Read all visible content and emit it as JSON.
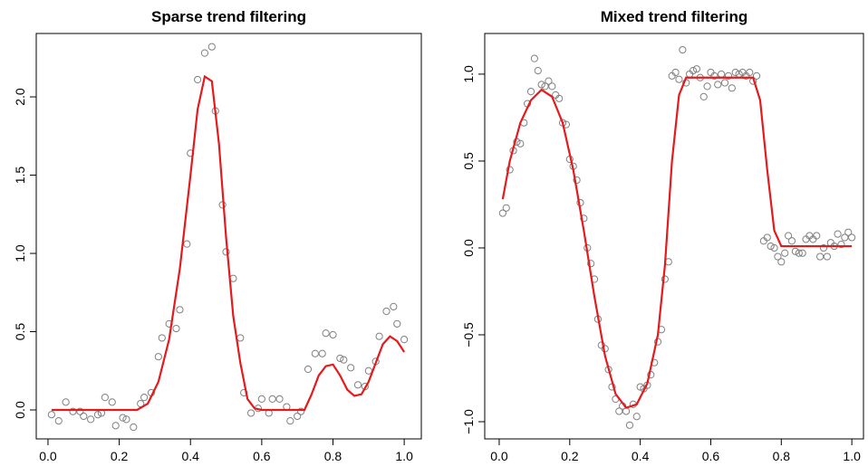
{
  "chart_data": [
    {
      "type": "scatter",
      "title": "Sparse trend filtering",
      "xlim": [
        -0.033,
        1.048
      ],
      "ylim": [
        -0.185,
        2.405
      ],
      "xticks": [
        {
          "value": 0,
          "label": "0.0"
        },
        0.2,
        0.4,
        0.6,
        0.8,
        {
          "value": 1,
          "label": "1.0"
        }
      ],
      "yticks": [
        {
          "value": 0,
          "label": "0.0"
        },
        0.5,
        {
          "value": 1,
          "label": "1.0"
        },
        1.5,
        {
          "value": 2,
          "label": "2.0"
        }
      ],
      "series": [
        {
          "type": "scatter",
          "color": "#808080",
          "x": [
            0.01,
            0.03,
            0.05,
            0.07,
            0.09,
            0.1,
            0.12,
            0.14,
            0.15,
            0.16,
            0.18,
            0.19,
            0.21,
            0.22,
            0.24,
            0.26,
            0.27,
            0.29,
            0.31,
            0.32,
            0.34,
            0.36,
            0.37,
            0.39,
            0.4,
            0.42,
            0.44,
            0.46,
            0.47,
            0.49,
            0.5,
            0.52,
            0.54,
            0.55,
            0.57,
            0.59,
            0.6,
            0.62,
            0.63,
            0.65,
            0.67,
            0.68,
            0.7,
            0.71,
            0.73,
            0.75,
            0.77,
            0.78,
            0.8,
            0.82,
            0.83,
            0.85,
            0.87,
            0.89,
            0.9,
            0.92,
            0.93,
            0.95,
            0.97,
            0.98,
            1.0
          ],
          "values": [
            -0.03,
            -0.07,
            0.05,
            -0.01,
            -0.01,
            -0.04,
            -0.06,
            -0.03,
            -0.02,
            0.08,
            0.05,
            -0.1,
            -0.05,
            -0.06,
            -0.11,
            0.04,
            0.08,
            0.11,
            0.34,
            0.46,
            0.55,
            0.52,
            0.64,
            1.06,
            1.64,
            2.11,
            2.28,
            2.32,
            1.91,
            1.31,
            1.01,
            0.84,
            0.46,
            0.11,
            -0.02,
            0.01,
            0.07,
            -0.02,
            0.07,
            0.07,
            0.02,
            -0.07,
            -0.04,
            -0.01,
            0.26,
            0.36,
            0.36,
            0.49,
            0.48,
            0.33,
            0.32,
            0.27,
            0.16,
            0.15,
            0.25,
            0.31,
            0.47,
            0.63,
            0.66,
            0.55,
            0.45
          ]
        },
        {
          "type": "line",
          "color": "#e41a1c",
          "x": [
            0.01,
            0.25,
            0.28,
            0.31,
            0.34,
            0.37,
            0.4,
            0.42,
            0.44,
            0.46,
            0.48,
            0.5,
            0.52,
            0.54,
            0.56,
            0.58,
            0.6,
            0.72,
            0.74,
            0.76,
            0.78,
            0.8,
            0.82,
            0.84,
            0.86,
            0.88,
            0.9,
            0.92,
            0.94,
            0.96,
            0.98,
            1.0
          ],
          "values": [
            0,
            0,
            0.04,
            0.18,
            0.45,
            0.9,
            1.5,
            1.92,
            2.13,
            2.1,
            1.7,
            1.1,
            0.6,
            0.3,
            0.07,
            0.01,
            0,
            0,
            0.1,
            0.22,
            0.28,
            0.29,
            0.22,
            0.13,
            0.09,
            0.1,
            0.18,
            0.3,
            0.42,
            0.47,
            0.44,
            0.37
          ]
        }
      ]
    },
    {
      "type": "scatter",
      "title": "Mixed trend filtering",
      "xlim": [
        -0.041,
        1.033
      ],
      "ylim": [
        -1.099,
        1.234
      ],
      "xticks": [
        {
          "value": 0,
          "label": "0.0"
        },
        0.2,
        0.4,
        0.6,
        0.8,
        {
          "value": 1,
          "label": "1.0"
        }
      ],
      "yticks": [
        {
          "value": -1,
          "label": "−1.0"
        },
        {
          "value": -0.5,
          "label": "−0.5"
        },
        {
          "value": 0,
          "label": "0.0"
        },
        0.5,
        {
          "value": 1,
          "label": "1.0"
        }
      ],
      "series": [
        {
          "type": "scatter",
          "color": "#808080",
          "x": [
            0.01,
            0.02,
            0.03,
            0.04,
            0.05,
            0.06,
            0.07,
            0.08,
            0.09,
            0.1,
            0.11,
            0.12,
            0.13,
            0.14,
            0.15,
            0.16,
            0.17,
            0.18,
            0.19,
            0.2,
            0.21,
            0.22,
            0.23,
            0.24,
            0.25,
            0.26,
            0.27,
            0.28,
            0.29,
            0.3,
            0.31,
            0.32,
            0.33,
            0.34,
            0.35,
            0.36,
            0.37,
            0.38,
            0.39,
            0.4,
            0.41,
            0.42,
            0.43,
            0.44,
            0.45,
            0.46,
            0.47,
            0.48,
            0.49,
            0.5,
            0.51,
            0.52,
            0.53,
            0.54,
            0.55,
            0.56,
            0.57,
            0.58,
            0.59,
            0.6,
            0.61,
            0.62,
            0.63,
            0.64,
            0.65,
            0.66,
            0.67,
            0.68,
            0.69,
            0.7,
            0.71,
            0.72,
            0.73,
            0.75,
            0.76,
            0.77,
            0.78,
            0.79,
            0.8,
            0.81,
            0.82,
            0.83,
            0.84,
            0.85,
            0.86,
            0.87,
            0.88,
            0.89,
            0.9,
            0.91,
            0.92,
            0.93,
            0.94,
            0.95,
            0.96,
            0.97,
            0.98,
            0.99,
            1.0
          ],
          "values": [
            0.2,
            0.23,
            0.45,
            0.56,
            0.61,
            0.6,
            0.72,
            0.83,
            0.9,
            1.09,
            1.02,
            0.94,
            0.93,
            0.96,
            0.93,
            0.88,
            0.86,
            0.72,
            0.71,
            0.51,
            0.47,
            0.39,
            0.26,
            0.17,
            0.0,
            -0.09,
            -0.18,
            -0.41,
            -0.56,
            -0.58,
            -0.7,
            -0.8,
            -0.87,
            -0.94,
            -0.91,
            -0.94,
            -1.02,
            -0.9,
            -0.97,
            -0.8,
            -0.81,
            -0.79,
            -0.73,
            -0.66,
            -0.54,
            -0.47,
            -0.18,
            -0.08,
            0.99,
            1.01,
            0.97,
            1.14,
            0.95,
            1.0,
            1.02,
            1.03,
            0.98,
            0.87,
            0.93,
            1.01,
            0.99,
            0.94,
            1.0,
            0.95,
            0.99,
            0.92,
            1.01,
            1.0,
            1.01,
            0.99,
            1.01,
            0.96,
            0.99,
            0.04,
            0.06,
            0.01,
            0.0,
            -0.05,
            -0.08,
            -0.03,
            0.07,
            0.04,
            -0.02,
            -0.03,
            -0.03,
            0.05,
            0.07,
            0.05,
            0.07,
            -0.05,
            0.0,
            -0.05,
            0.03,
            0.01,
            0.08,
            0.02,
            0.06,
            0.09,
            0.06
          ]
        },
        {
          "type": "line",
          "color": "#e41a1c",
          "x": [
            0.01,
            0.03,
            0.06,
            0.09,
            0.12,
            0.15,
            0.18,
            0.21,
            0.24,
            0.27,
            0.3,
            0.33,
            0.36,
            0.39,
            0.42,
            0.45,
            0.47,
            0.49,
            0.51,
            0.53,
            0.72,
            0.74,
            0.76,
            0.78,
            0.8,
            1.0
          ],
          "values": [
            0.28,
            0.5,
            0.72,
            0.85,
            0.91,
            0.87,
            0.72,
            0.45,
            0.1,
            -0.28,
            -0.62,
            -0.84,
            -0.92,
            -0.9,
            -0.78,
            -0.5,
            -0.1,
            0.5,
            0.88,
            0.98,
            0.98,
            0.85,
            0.45,
            0.1,
            0.01,
            0.01
          ]
        }
      ]
    }
  ]
}
